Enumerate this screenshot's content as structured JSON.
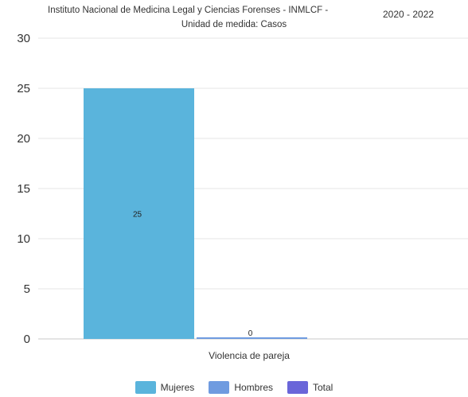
{
  "header": {
    "subtitle": "Instituto Nacional de Medicina Legal y Ciencias Forenses - INMLCF -",
    "unit": "Unidad de medida: Casos",
    "period": "2020  - 2022"
  },
  "chart_data": {
    "type": "bar",
    "categories": [
      "Violencia de pareja"
    ],
    "series": [
      {
        "name": "Mujeres",
        "values": [
          25
        ],
        "color": "#5ab4dc",
        "label": "25"
      },
      {
        "name": "Hombres",
        "values": [
          0
        ],
        "color": "#6f9be0",
        "label": "0"
      },
      {
        "name": "Total",
        "values": [
          null
        ],
        "color": "#6a66d9",
        "label": ""
      }
    ],
    "yticks": [
      "0",
      "5",
      "10",
      "15",
      "20",
      "25",
      "30"
    ],
    "ylim": [
      0,
      30
    ],
    "grid": true,
    "legend_position": "bottom"
  }
}
